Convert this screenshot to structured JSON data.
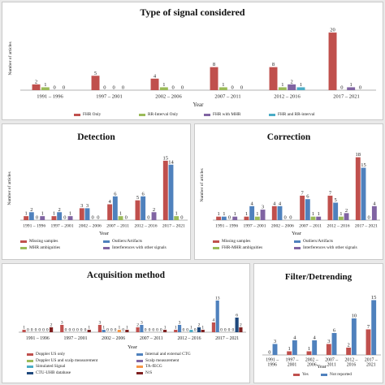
{
  "chart_data": [
    {
      "type": "bar",
      "title": "Type of signal considered",
      "xlabel": "Year",
      "ylabel": "Number of articles",
      "categories": [
        "1991 – 1996",
        "1997 – 2001",
        "2002 – 2006",
        "2007 – 2011",
        "2012 – 2016",
        "2017 – 2021"
      ],
      "ylim": [
        0,
        22
      ],
      "legend_position": "bottom",
      "series": [
        {
          "name": "FHR Only",
          "color": "#c0504d",
          "values": [
            2,
            5,
            4,
            8,
            8,
            20
          ]
        },
        {
          "name": "RR-Interval Only",
          "color": "#9bbb59",
          "values": [
            1,
            0,
            1,
            1,
            1,
            0
          ]
        },
        {
          "name": "FHR with MHR",
          "color": "#8064a2",
          "values": [
            0,
            0,
            0,
            0,
            2,
            1
          ]
        },
        {
          "name": "FHR and RR-interval",
          "color": "#4bacc6",
          "values": [
            0,
            0,
            0,
            0,
            1,
            0
          ]
        }
      ]
    },
    {
      "type": "bar",
      "title": "Detection",
      "xlabel": "Year",
      "ylabel": "Number of articles",
      "categories": [
        "1991 – 1996",
        "1997 – 2001",
        "2002 – 2006",
        "2007 – 2011",
        "2012 – 2016",
        "2017 – 2021"
      ],
      "ylim": [
        0,
        16
      ],
      "legend_position": "bottom",
      "series": [
        {
          "name": "Missing samples",
          "color": "#c0504d",
          "values": [
            1,
            1,
            3,
            4,
            5,
            15
          ]
        },
        {
          "name": "Outliers/Artifacts",
          "color": "#4f81bd",
          "values": [
            2,
            2,
            3,
            6,
            6,
            14
          ]
        },
        {
          "name": "MHR ambiguities",
          "color": "#9bbb59",
          "values": [
            0,
            0,
            0,
            1,
            0,
            1
          ]
        },
        {
          "name": "Interferences with other signals",
          "color": "#8064a2",
          "values": [
            1,
            1,
            0,
            0,
            2,
            0
          ]
        }
      ]
    },
    {
      "type": "bar",
      "title": "Correction",
      "xlabel": "Year",
      "ylabel": "Number of articles",
      "categories": [
        "1991 – 1996",
        "1997 – 2001",
        "2002 – 2006",
        "2007 – 2011",
        "2012 – 2016",
        "2017 – 2021"
      ],
      "ylim": [
        0,
        20
      ],
      "legend_position": "bottom",
      "series": [
        {
          "name": "Missing samples",
          "color": "#c0504d",
          "values": [
            1,
            1,
            4,
            7,
            7,
            18
          ]
        },
        {
          "name": "Outliers/Artifacts",
          "color": "#4f81bd",
          "values": [
            1,
            4,
            4,
            6,
            5,
            15
          ]
        },
        {
          "name": "FHR-MHR ambiguities",
          "color": "#9bbb59",
          "values": [
            0,
            1,
            0,
            1,
            1,
            0
          ]
        },
        {
          "name": "Interferences with other signals",
          "color": "#8064a2",
          "values": [
            1,
            3,
            0,
            1,
            2,
            4
          ]
        }
      ]
    },
    {
      "type": "bar",
      "title": "Acquisition method",
      "xlabel": "Year",
      "categories": [
        "1991 – 1996",
        "1997 – 2001",
        "2002 – 2006",
        "2007 – 2011",
        "2012 – 2016",
        "2017 – 2021"
      ],
      "ylim": [
        0,
        14
      ],
      "legend_position": "bottom",
      "series": [
        {
          "name": "Doppler US only",
          "color": "#c0504d",
          "values": [
            1,
            3,
            3,
            2,
            1,
            4
          ]
        },
        {
          "name": "Internal and external CTG",
          "color": "#4f81bd",
          "values": [
            0,
            0,
            1,
            3,
            3,
            13
          ]
        },
        {
          "name": "Doppler US and scalp measurement",
          "color": "#9bbb59",
          "values": [
            0,
            0,
            0,
            0,
            0,
            0
          ]
        },
        {
          "name": "Scalp measurement",
          "color": "#8064a2",
          "values": [
            0,
            0,
            0,
            0,
            0,
            0
          ]
        },
        {
          "name": "Simulated Signal",
          "color": "#4bacc6",
          "values": [
            0,
            0,
            0,
            0,
            1,
            0
          ]
        },
        {
          "name": "TA-fECG",
          "color": "#f79646",
          "values": [
            0,
            0,
            1,
            0,
            0,
            0
          ]
        },
        {
          "name": "CTU-UHB database",
          "color": "#1f497d",
          "values": [
            0,
            0,
            0,
            0,
            2,
            6
          ]
        },
        {
          "name": "N/S",
          "color": "#7f2020",
          "values": [
            2,
            1,
            1,
            1,
            1,
            2
          ]
        }
      ]
    },
    {
      "type": "bar",
      "title": "Filter/Detrending",
      "xlabel": "Year",
      "categories": [
        "1991 – 1996",
        "1997 – 2001",
        "2002 – 2006",
        "2007 – 2011",
        "2012 – 2016",
        "2017 – 2021"
      ],
      "ylim": [
        0,
        16
      ],
      "legend_position": "bottom",
      "series": [
        {
          "name": "Yes",
          "color": "#c0504d",
          "values": [
            0,
            1,
            1,
            3,
            2,
            7
          ]
        },
        {
          "name": "Not reported",
          "color": "#4f81bd",
          "values": [
            3,
            4,
            4,
            6,
            10,
            15
          ]
        }
      ]
    }
  ]
}
